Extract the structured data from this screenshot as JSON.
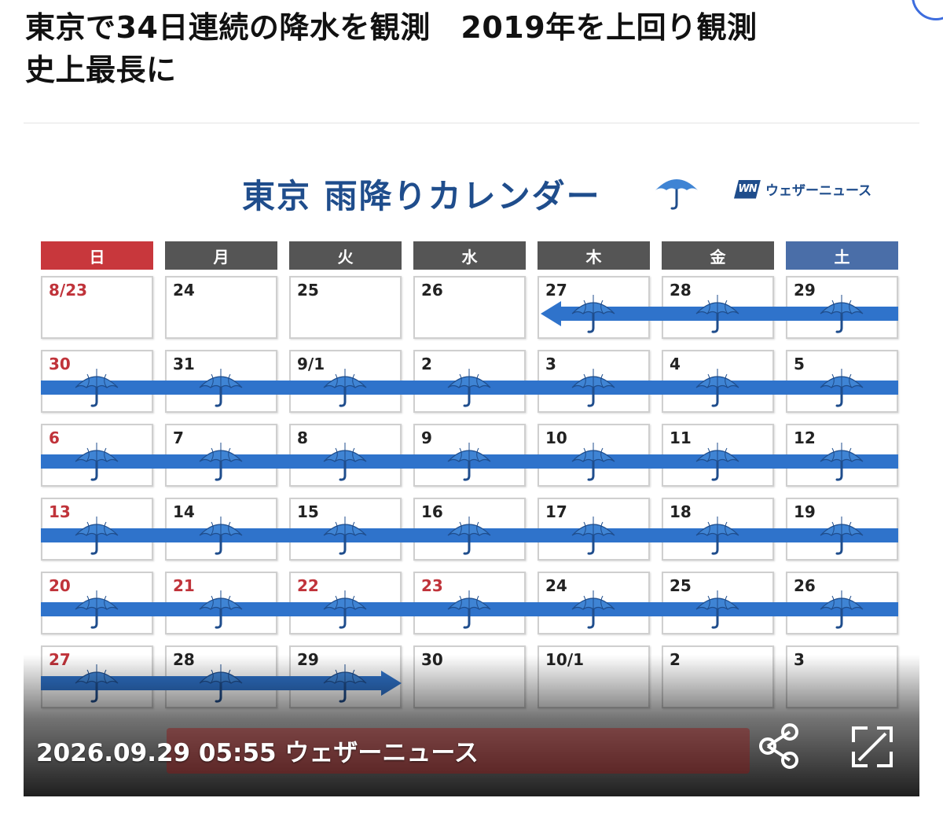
{
  "article": {
    "headline_line1": "東京で34日連続の降水を観測　2019年を上回り観測",
    "headline_line2": "史上最長に"
  },
  "calendar": {
    "title": "東京 雨降りカレンダー",
    "brand": {
      "mark": "WN",
      "name": "ウェザーニュース"
    },
    "weekdays": [
      {
        "label": "日",
        "color": "#c8373c"
      },
      {
        "label": "月",
        "color": "#555555"
      },
      {
        "label": "火",
        "color": "#555555"
      },
      {
        "label": "水",
        "color": "#555555"
      },
      {
        "label": "木",
        "color": "#555555"
      },
      {
        "label": "金",
        "color": "#555555"
      },
      {
        "label": "土",
        "color": "#4a6ea8"
      }
    ],
    "weeks": [
      {
        "days": [
          {
            "label": "8/23",
            "red": true,
            "rain": false
          },
          {
            "label": "24",
            "red": false,
            "rain": false
          },
          {
            "label": "25",
            "red": false,
            "rain": false
          },
          {
            "label": "26",
            "red": false,
            "rain": false
          },
          {
            "label": "27",
            "red": false,
            "rain": true
          },
          {
            "label": "28",
            "red": false,
            "rain": true
          },
          {
            "label": "29",
            "red": false,
            "rain": true
          }
        ]
      },
      {
        "days": [
          {
            "label": "30",
            "red": true,
            "rain": true
          },
          {
            "label": "31",
            "red": false,
            "rain": true
          },
          {
            "label": "9/1",
            "red": false,
            "rain": true
          },
          {
            "label": "2",
            "red": false,
            "rain": true
          },
          {
            "label": "3",
            "red": false,
            "rain": true
          },
          {
            "label": "4",
            "red": false,
            "rain": true
          },
          {
            "label": "5",
            "red": false,
            "rain": true
          }
        ]
      },
      {
        "days": [
          {
            "label": "6",
            "red": true,
            "rain": true
          },
          {
            "label": "7",
            "red": false,
            "rain": true
          },
          {
            "label": "8",
            "red": false,
            "rain": true
          },
          {
            "label": "9",
            "red": false,
            "rain": true
          },
          {
            "label": "10",
            "red": false,
            "rain": true
          },
          {
            "label": "11",
            "red": false,
            "rain": true
          },
          {
            "label": "12",
            "red": false,
            "rain": true
          }
        ]
      },
      {
        "days": [
          {
            "label": "13",
            "red": true,
            "rain": true
          },
          {
            "label": "14",
            "red": false,
            "rain": true
          },
          {
            "label": "15",
            "red": false,
            "rain": true
          },
          {
            "label": "16",
            "red": false,
            "rain": true
          },
          {
            "label": "17",
            "red": false,
            "rain": true
          },
          {
            "label": "18",
            "red": false,
            "rain": true
          },
          {
            "label": "19",
            "red": false,
            "rain": true
          }
        ]
      },
      {
        "days": [
          {
            "label": "20",
            "red": true,
            "rain": true
          },
          {
            "label": "21",
            "red": true,
            "rain": true
          },
          {
            "label": "22",
            "red": true,
            "rain": true
          },
          {
            "label": "23",
            "red": true,
            "rain": true
          },
          {
            "label": "24",
            "red": false,
            "rain": true
          },
          {
            "label": "25",
            "red": false,
            "rain": true
          },
          {
            "label": "26",
            "red": false,
            "rain": true
          }
        ]
      },
      {
        "days": [
          {
            "label": "27",
            "red": true,
            "rain": true
          },
          {
            "label": "28",
            "red": false,
            "rain": true
          },
          {
            "label": "29",
            "red": false,
            "rain": true
          },
          {
            "label": "30",
            "red": false,
            "rain": false
          },
          {
            "label": "10/1",
            "red": false,
            "rain": false
          },
          {
            "label": "2",
            "red": false,
            "rain": false
          },
          {
            "label": "3",
            "red": false,
            "rain": false
          }
        ]
      }
    ],
    "colors": {
      "rain_band": "#2f73cb",
      "umbrella": "#3f84d4",
      "title": "#1f4d8c",
      "holiday": "#c0333a"
    }
  },
  "footer": {
    "timestamp": "2026.09.29 05:55",
    "source": "ウェザーニュース",
    "share_icon": "share-icon",
    "expand_icon": "expand-icon"
  }
}
